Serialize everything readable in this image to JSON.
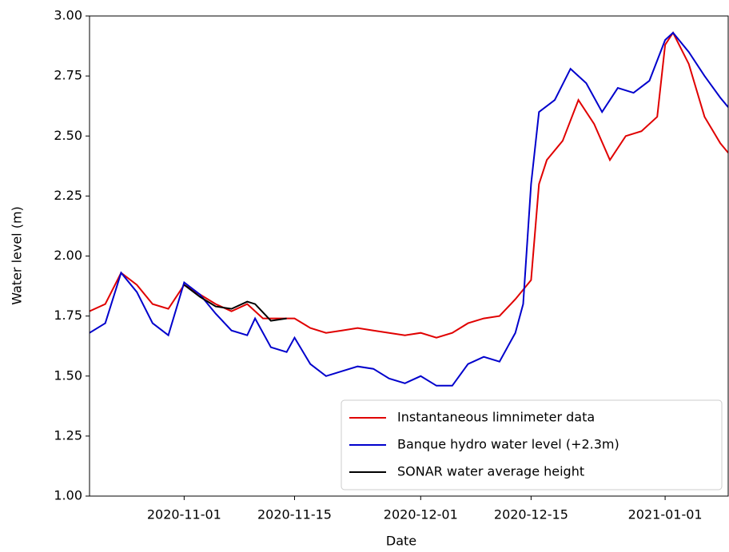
{
  "chart_data": {
    "type": "line",
    "x_label": "Date",
    "y_label": "Water level (m)",
    "xlim": [
      "2020-10-20",
      "2021-01-09"
    ],
    "xticks": [
      "2020-11-01",
      "2020-11-15",
      "2020-12-01",
      "2020-12-15",
      "2021-01-01"
    ],
    "ylim": [
      1,
      3
    ],
    "yticks": [
      {
        "value": 1,
        "label": "1.00"
      },
      {
        "value": 1.25,
        "label": "1.25"
      },
      {
        "value": 1.5,
        "label": "1.50"
      },
      {
        "value": 1.75,
        "label": "1.75"
      },
      {
        "value": 2,
        "label": "2.00"
      },
      {
        "value": 2.25,
        "label": "2.25"
      },
      {
        "value": 2.5,
        "label": "2.50"
      },
      {
        "value": 2.75,
        "label": "2.75"
      },
      {
        "value": 3,
        "label": "3.00"
      }
    ],
    "legend": "lower right",
    "series": [
      {
        "name": "Instantaneous limnimeter data",
        "color": "#e00000",
        "x": [
          "2020-10-20",
          "2020-10-22",
          "2020-10-24",
          "2020-10-26",
          "2020-10-28",
          "2020-10-30",
          "2020-11-01",
          "2020-11-03",
          "2020-11-05",
          "2020-11-07",
          "2020-11-09",
          "2020-11-11",
          "2020-11-13",
          "2020-11-15",
          "2020-11-17",
          "2020-11-19",
          "2020-11-21",
          "2020-11-23",
          "2020-11-25",
          "2020-11-27",
          "2020-11-29",
          "2020-12-01",
          "2020-12-03",
          "2020-12-05",
          "2020-12-07",
          "2020-12-09",
          "2020-12-11",
          "2020-12-13",
          "2020-12-15",
          "2020-12-16",
          "2020-12-17",
          "2020-12-19",
          "2020-12-21",
          "2020-12-23",
          "2020-12-25",
          "2020-12-27",
          "2020-12-29",
          "2020-12-31",
          "2021-01-01",
          "2021-01-02",
          "2021-01-04",
          "2021-01-06",
          "2021-01-08",
          "2021-01-09"
        ],
        "values": [
          1.77,
          1.8,
          1.93,
          1.88,
          1.8,
          1.78,
          1.88,
          1.84,
          1.8,
          1.77,
          1.8,
          1.74,
          1.74,
          1.74,
          1.7,
          1.68,
          1.69,
          1.7,
          1.69,
          1.68,
          1.67,
          1.68,
          1.66,
          1.68,
          1.72,
          1.74,
          1.75,
          1.82,
          1.9,
          2.3,
          2.4,
          2.48,
          2.65,
          2.55,
          2.4,
          2.5,
          2.52,
          2.58,
          2.88,
          2.93,
          2.8,
          2.58,
          2.47,
          2.43
        ]
      },
      {
        "name": "Banque hydro water level (+2.3m)",
        "color": "#0000cc",
        "x": [
          "2020-10-20",
          "2020-10-22",
          "2020-10-24",
          "2020-10-26",
          "2020-10-28",
          "2020-10-30",
          "2020-11-01",
          "2020-11-03",
          "2020-11-05",
          "2020-11-07",
          "2020-11-09",
          "2020-11-10",
          "2020-11-12",
          "2020-11-14",
          "2020-11-15",
          "2020-11-17",
          "2020-11-19",
          "2020-11-21",
          "2020-11-23",
          "2020-11-25",
          "2020-11-27",
          "2020-11-29",
          "2020-12-01",
          "2020-12-03",
          "2020-12-05",
          "2020-12-07",
          "2020-12-09",
          "2020-12-11",
          "2020-12-13",
          "2020-12-14",
          "2020-12-15",
          "2020-12-16",
          "2020-12-18",
          "2020-12-20",
          "2020-12-22",
          "2020-12-24",
          "2020-12-26",
          "2020-12-28",
          "2020-12-30",
          "2021-01-01",
          "2021-01-02",
          "2021-01-04",
          "2021-01-06",
          "2021-01-08",
          "2021-01-09"
        ],
        "values": [
          1.68,
          1.72,
          1.93,
          1.85,
          1.72,
          1.67,
          1.89,
          1.84,
          1.76,
          1.69,
          1.67,
          1.74,
          1.62,
          1.6,
          1.66,
          1.55,
          1.5,
          1.52,
          1.54,
          1.53,
          1.49,
          1.47,
          1.5,
          1.46,
          1.46,
          1.55,
          1.58,
          1.56,
          1.68,
          1.8,
          2.3,
          2.6,
          2.65,
          2.78,
          2.72,
          2.6,
          2.7,
          2.68,
          2.73,
          2.9,
          2.93,
          2.85,
          2.75,
          2.66,
          2.62
        ]
      },
      {
        "name": "SONAR water average height",
        "color": "#000000",
        "x": [
          "2020-11-01",
          "2020-11-03",
          "2020-11-05",
          "2020-11-07",
          "2020-11-09",
          "2020-11-10",
          "2020-11-12",
          "2020-11-14"
        ],
        "values": [
          1.88,
          1.83,
          1.79,
          1.78,
          1.81,
          1.8,
          1.73,
          1.74
        ]
      }
    ]
  }
}
